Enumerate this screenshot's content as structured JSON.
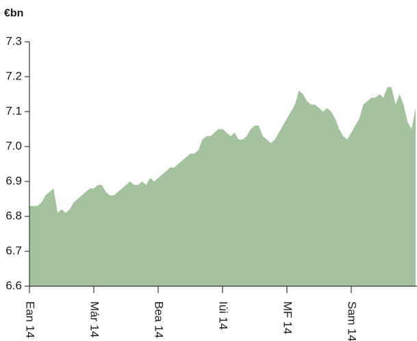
{
  "chart_data": {
    "type": "area",
    "y_label": "€bn",
    "color": "#a3c29d",
    "categories": [
      "Ean 14",
      null,
      null,
      null,
      null,
      null,
      null,
      null,
      null,
      null,
      null,
      null,
      null,
      null,
      null,
      null,
      "Már 14",
      null,
      null,
      null,
      null,
      null,
      null,
      null,
      null,
      null,
      null,
      null,
      null,
      null,
      null,
      null,
      "Bea 14",
      null,
      null,
      null,
      null,
      null,
      null,
      null,
      null,
      null,
      null,
      null,
      null,
      null,
      null,
      null,
      "Iúi 14",
      null,
      null,
      null,
      null,
      null,
      null,
      null,
      null,
      null,
      null,
      null,
      null,
      null,
      null,
      null,
      "MF 14",
      null,
      null,
      null,
      null,
      null,
      null,
      null,
      null,
      null,
      null,
      null,
      null,
      null,
      null,
      null,
      "Sam 14",
      null,
      null,
      null,
      null,
      null,
      null,
      null,
      null,
      null,
      null,
      null,
      null,
      null,
      null,
      null,
      null
    ],
    "values": [
      6.83,
      6.83,
      6.83,
      6.84,
      6.86,
      6.87,
      6.88,
      6.81,
      6.82,
      6.81,
      6.82,
      6.84,
      6.85,
      6.86,
      6.87,
      6.88,
      6.88,
      6.89,
      6.89,
      6.87,
      6.86,
      6.86,
      6.87,
      6.88,
      6.89,
      6.9,
      6.89,
      6.89,
      6.9,
      6.89,
      6.91,
      6.9,
      6.91,
      6.92,
      6.93,
      6.94,
      6.94,
      6.95,
      6.96,
      6.97,
      6.98,
      6.98,
      6.99,
      7.02,
      7.03,
      7.03,
      7.04,
      7.05,
      7.05,
      7.04,
      7.03,
      7.04,
      7.02,
      7.02,
      7.03,
      7.05,
      7.06,
      7.06,
      7.03,
      7.02,
      7.01,
      7.02,
      7.04,
      7.06,
      7.08,
      7.1,
      7.12,
      7.16,
      7.15,
      7.13,
      7.12,
      7.12,
      7.11,
      7.1,
      7.11,
      7.1,
      7.08,
      7.05,
      7.03,
      7.02,
      7.04,
      7.06,
      7.08,
      7.12,
      7.13,
      7.14,
      7.14,
      7.15,
      7.14,
      7.17,
      7.17,
      7.12,
      7.15,
      7.12,
      7.07,
      7.05,
      7.11
    ],
    "ylim": [
      6.6,
      7.3
    ],
    "yticks": [
      6.6,
      6.7,
      6.8,
      6.9,
      {
        "value": 7.0,
        "label": "7.0"
      },
      7.1,
      7.2,
      7.3
    ]
  }
}
